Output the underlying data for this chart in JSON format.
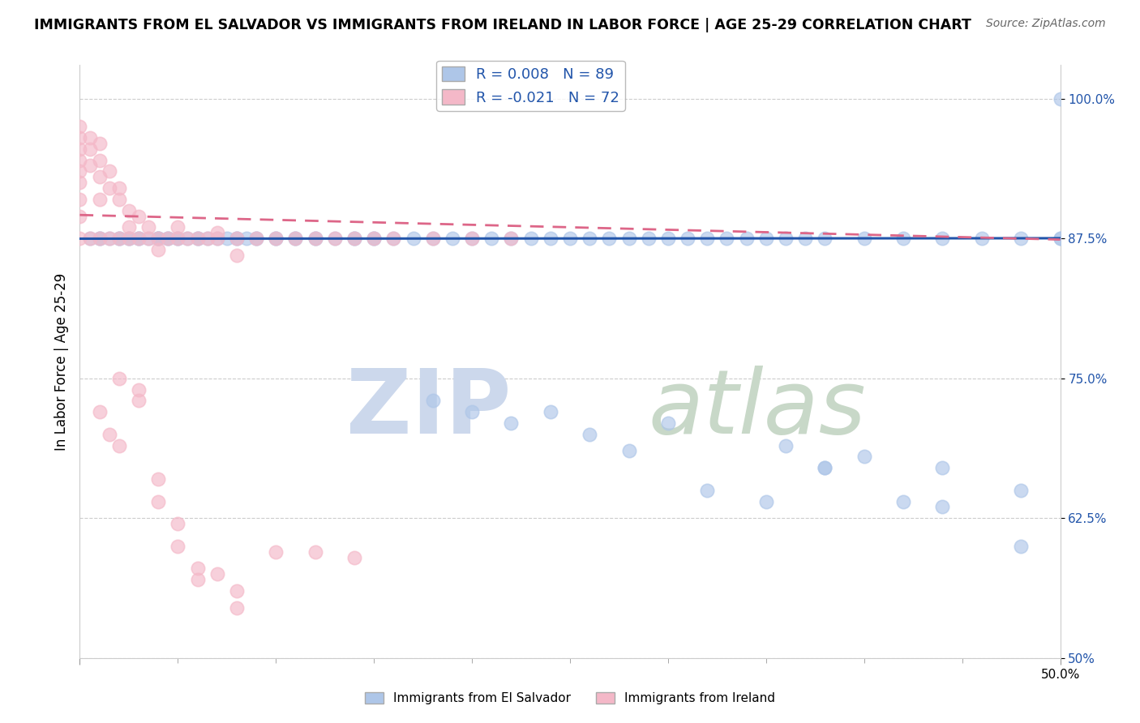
{
  "title": "IMMIGRANTS FROM EL SALVADOR VS IMMIGRANTS FROM IRELAND IN LABOR FORCE | AGE 25-29 CORRELATION CHART",
  "source": "Source: ZipAtlas.com",
  "ylabel": "In Labor Force | Age 25-29",
  "xlim": [
    0.0,
    0.5
  ],
  "ylim": [
    0.5,
    1.03
  ],
  "ytick_vals": [
    0.5,
    0.625,
    0.75,
    0.875,
    1.0
  ],
  "ytick_labels": [
    "50%",
    "62.5%",
    "75.0%",
    "87.5%",
    "100.0%"
  ],
  "legend_entry1": "R = 0.008   N = 89",
  "legend_entry2": "R = -0.021   N = 72",
  "legend_color1": "#aec6e8",
  "legend_color2": "#f4b8c8",
  "scatter_blue_color": "#aec6e8",
  "scatter_pink_color": "#f4b8c8",
  "trend_blue_color": "#2255aa",
  "trend_pink_color": "#dd6688",
  "blue_trend_x": [
    0.0,
    0.5
  ],
  "blue_trend_y": [
    0.8748,
    0.8752
  ],
  "pink_trend_x": [
    0.0,
    0.5
  ],
  "pink_trend_y": [
    0.896,
    0.874
  ],
  "blue_x": [
    0.005,
    0.01,
    0.01,
    0.015,
    0.02,
    0.02,
    0.025,
    0.025,
    0.03,
    0.03,
    0.035,
    0.04,
    0.04,
    0.04,
    0.045,
    0.045,
    0.05,
    0.05,
    0.055,
    0.06,
    0.06,
    0.065,
    0.07,
    0.075,
    0.08,
    0.08,
    0.085,
    0.09,
    0.09,
    0.1,
    0.1,
    0.11,
    0.11,
    0.12,
    0.12,
    0.13,
    0.14,
    0.14,
    0.15,
    0.15,
    0.16,
    0.17,
    0.18,
    0.19,
    0.2,
    0.21,
    0.22,
    0.23,
    0.24,
    0.25,
    0.26,
    0.27,
    0.28,
    0.29,
    0.3,
    0.31,
    0.32,
    0.33,
    0.34,
    0.35,
    0.36,
    0.37,
    0.38,
    0.4,
    0.42,
    0.44,
    0.46,
    0.48,
    0.5,
    0.22,
    0.28,
    0.32,
    0.35,
    0.38,
    0.42,
    0.44,
    0.48,
    0.18,
    0.24,
    0.3,
    0.36,
    0.4,
    0.44,
    0.48,
    0.5,
    0.2,
    0.26,
    0.38,
    0.5
  ],
  "blue_y": [
    0.875,
    0.875,
    0.875,
    0.875,
    0.875,
    0.875,
    0.875,
    0.875,
    0.875,
    0.875,
    0.875,
    0.875,
    0.875,
    0.875,
    0.875,
    0.875,
    0.875,
    0.875,
    0.875,
    0.875,
    0.875,
    0.875,
    0.875,
    0.875,
    0.875,
    0.875,
    0.875,
    0.875,
    0.875,
    0.875,
    0.875,
    0.875,
    0.875,
    0.875,
    0.875,
    0.875,
    0.875,
    0.875,
    0.875,
    0.875,
    0.875,
    0.875,
    0.875,
    0.875,
    0.875,
    0.875,
    0.875,
    0.875,
    0.875,
    0.875,
    0.875,
    0.875,
    0.875,
    0.875,
    0.875,
    0.875,
    0.875,
    0.875,
    0.875,
    0.875,
    0.875,
    0.875,
    0.875,
    0.875,
    0.875,
    0.875,
    0.875,
    0.875,
    0.875,
    0.71,
    0.685,
    0.65,
    0.64,
    0.67,
    0.64,
    0.635,
    0.6,
    0.73,
    0.72,
    0.71,
    0.69,
    0.68,
    0.67,
    0.65,
    1.0,
    0.72,
    0.7,
    0.67,
    0.875
  ],
  "pink_x": [
    0.0,
    0.0,
    0.0,
    0.0,
    0.0,
    0.0,
    0.0,
    0.0,
    0.0,
    0.005,
    0.005,
    0.005,
    0.005,
    0.01,
    0.01,
    0.01,
    0.01,
    0.01,
    0.015,
    0.015,
    0.015,
    0.02,
    0.02,
    0.02,
    0.025,
    0.025,
    0.025,
    0.03,
    0.03,
    0.035,
    0.035,
    0.04,
    0.04,
    0.045,
    0.05,
    0.05,
    0.055,
    0.06,
    0.065,
    0.07,
    0.07,
    0.08,
    0.08,
    0.09,
    0.1,
    0.11,
    0.12,
    0.13,
    0.14,
    0.15,
    0.16,
    0.18,
    0.2,
    0.22,
    0.02,
    0.03,
    0.04,
    0.05,
    0.06,
    0.07,
    0.08,
    0.1,
    0.12,
    0.14,
    0.01,
    0.015,
    0.02,
    0.03,
    0.04,
    0.05,
    0.06,
    0.08
  ],
  "pink_y": [
    0.975,
    0.965,
    0.955,
    0.945,
    0.935,
    0.925,
    0.91,
    0.895,
    0.875,
    0.965,
    0.955,
    0.94,
    0.875,
    0.96,
    0.945,
    0.93,
    0.91,
    0.875,
    0.935,
    0.92,
    0.875,
    0.92,
    0.91,
    0.875,
    0.9,
    0.885,
    0.875,
    0.895,
    0.875,
    0.885,
    0.875,
    0.875,
    0.865,
    0.875,
    0.885,
    0.875,
    0.875,
    0.875,
    0.875,
    0.88,
    0.875,
    0.875,
    0.86,
    0.875,
    0.875,
    0.875,
    0.875,
    0.875,
    0.875,
    0.875,
    0.875,
    0.875,
    0.875,
    0.875,
    0.69,
    0.74,
    0.64,
    0.6,
    0.58,
    0.575,
    0.545,
    0.595,
    0.595,
    0.59,
    0.72,
    0.7,
    0.75,
    0.73,
    0.66,
    0.62,
    0.57,
    0.56
  ]
}
